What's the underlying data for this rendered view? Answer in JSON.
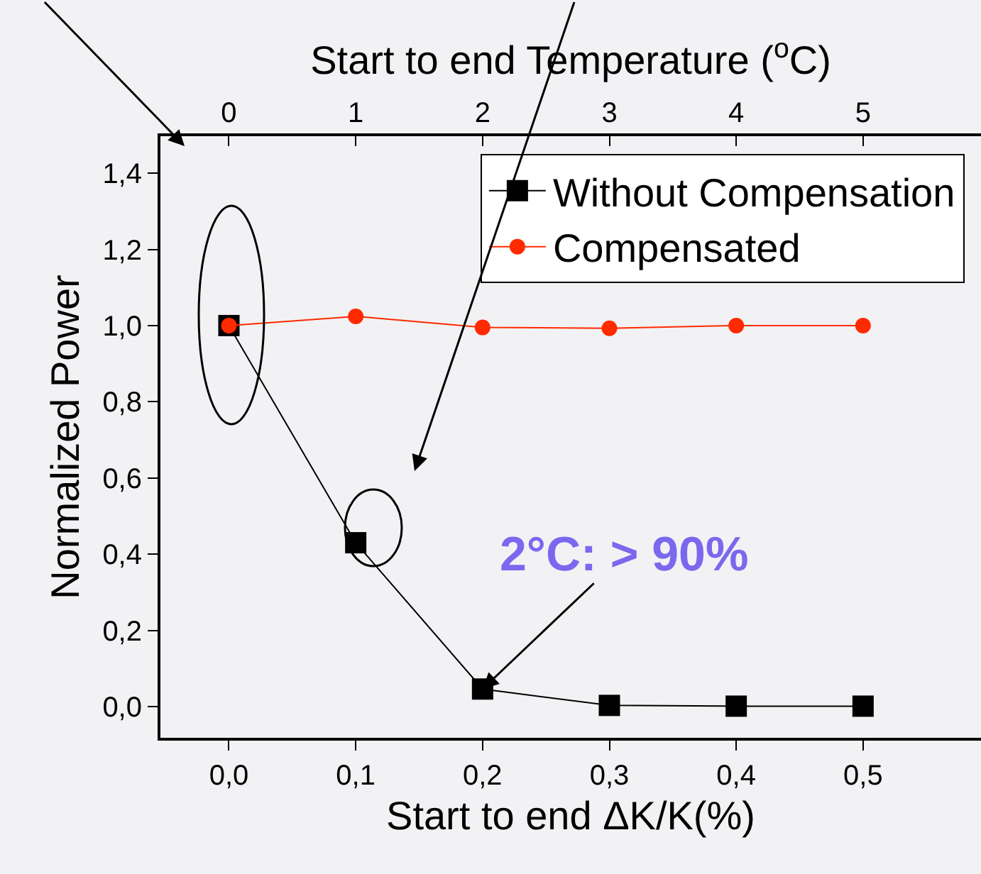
{
  "chart_data": {
    "type": "line",
    "xlabel": "Start to end ΔK/K(%)",
    "ylabel": "Normalized Power",
    "x2label": "Start to end Temperature ($^{o}$C)",
    "x": [
      0.0,
      0.1,
      0.2,
      0.3,
      0.4,
      0.5
    ],
    "series": [
      {
        "name": "Without Compensation",
        "color": "#000000",
        "marker": "square",
        "values": [
          1.0,
          0.43,
          0.046,
          0.003,
          0.001,
          0.001
        ]
      },
      {
        "name": "Compensated",
        "color": "#ff2a00",
        "marker": "circle",
        "values": [
          1.0,
          1.024,
          0.995,
          0.993,
          1.0,
          1.0
        ]
      }
    ],
    "xlim": [
      -0.054,
      0.593
    ],
    "xticks": [
      {
        "value": 0.0,
        "label": "0,0"
      },
      {
        "value": 0.1,
        "label": "0,1"
      },
      {
        "value": 0.2,
        "label": "0,2"
      },
      {
        "value": 0.3,
        "label": "0,3"
      },
      {
        "value": 0.4,
        "label": "0,4"
      },
      {
        "value": 0.5,
        "label": "0,5"
      }
    ],
    "x2lim": [
      -0.54,
      5.93
    ],
    "x2ticks": [
      0,
      1,
      2,
      3,
      4,
      5
    ],
    "ylim": [
      -0.082,
      1.497
    ],
    "yticks": [
      {
        "value": 0.0,
        "label": "0,0"
      },
      {
        "value": 0.2,
        "label": "0,2"
      },
      {
        "value": 0.4,
        "label": "0,4"
      },
      {
        "value": 0.6,
        "label": "0,6"
      },
      {
        "value": 0.8,
        "label": "0,8"
      },
      {
        "value": 1.0,
        "label": "1,0"
      },
      {
        "value": 1.2,
        "label": "1,2"
      },
      {
        "value": 1.4,
        "label": "1,4"
      }
    ],
    "annotations": [
      {
        "text": "2°C: > 90%",
        "x": 0.2,
        "y": 0.046
      }
    ],
    "legend": "top right",
    "grid": false
  }
}
